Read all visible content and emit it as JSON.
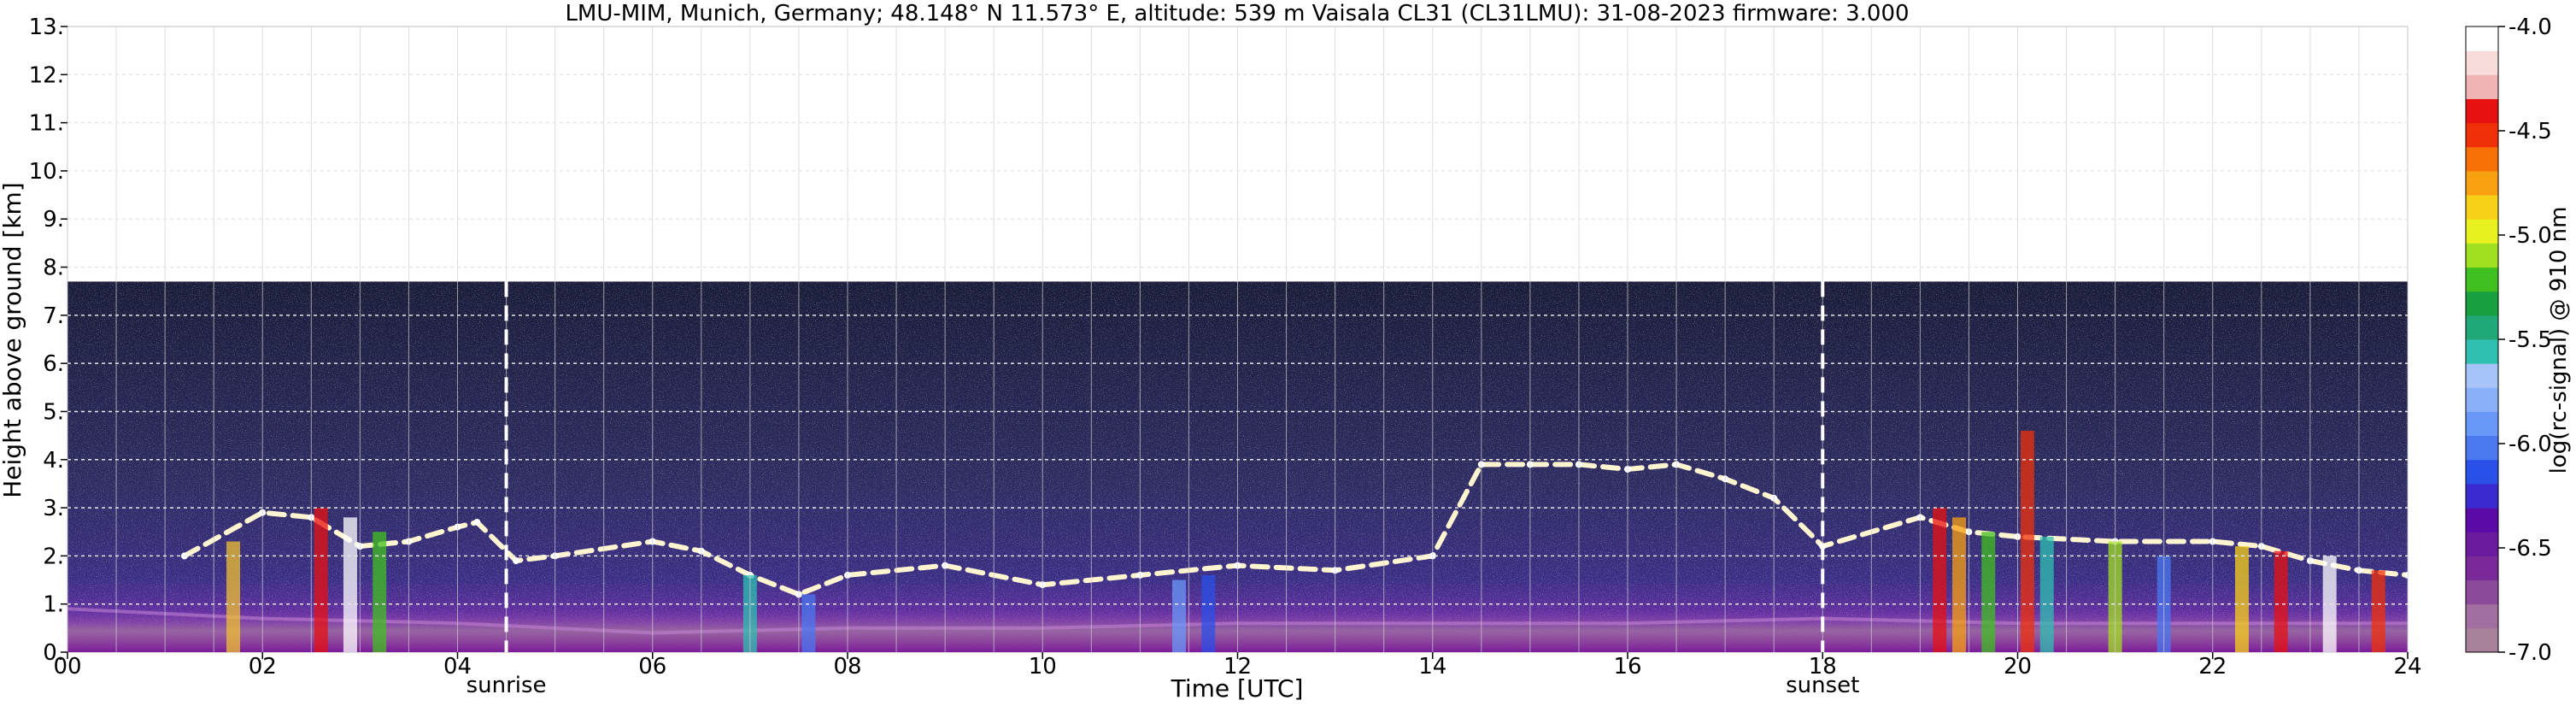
{
  "chart_data": {
    "type": "heatmap",
    "title": "LMU-MIM, Munich, Germany; 48.148° N 11.573° E, altitude: 539 m    Vaisala CL31 (CL31LMU): 31-08-2023    firmware: 3.000",
    "xlabel": "Time [UTC]",
    "ylabel": "Height above ground [km]",
    "xlim": [
      0,
      24
    ],
    "ylim": [
      0,
      13
    ],
    "x_ticks": [
      "00",
      "02",
      "04",
      "06",
      "08",
      "10",
      "12",
      "14",
      "16",
      "18",
      "20",
      "22",
      "24"
    ],
    "y_ticks": [
      "0.",
      "1.",
      "2.",
      "3.",
      "4.",
      "5.",
      "6.",
      "7.",
      "8.",
      "9.",
      "10.",
      "11.",
      "12.",
      "13."
    ],
    "grid": true,
    "data_top_km": 7.7,
    "sunrise": {
      "hour": 4.5,
      "label": "sunrise"
    },
    "sunset": {
      "hour": 18.0,
      "label": "sunset"
    },
    "colorbar": {
      "label": "log(rc-signal) @ 910 nm",
      "range": [
        -7.0,
        -4.0
      ],
      "ticks": [
        "-4.0",
        "-4.5",
        "-5.0",
        "-5.5",
        "-6.0",
        "-6.5",
        "-7.0"
      ],
      "colors": [
        "#a8829a",
        "#a270a0",
        "#8c4a9a",
        "#7a2a98",
        "#6a1a9c",
        "#5a0aa6",
        "#3a2ad0",
        "#2a50e8",
        "#4a78f0",
        "#6a98f8",
        "#8ab0f8",
        "#a6c4f8",
        "#2ec0b0",
        "#20a878",
        "#18a040",
        "#40c020",
        "#a0e020",
        "#e8f020",
        "#f8d018",
        "#f8a010",
        "#f87008",
        "#f03008",
        "#e81010",
        "#f0b4b4",
        "#f8dcdc",
        "#ffffff"
      ]
    },
    "layers": [
      {
        "name": "cloud_layer",
        "points": [
          [
            1.2,
            2.0
          ],
          [
            2.0,
            2.9
          ],
          [
            2.5,
            2.8
          ],
          [
            3.0,
            2.2
          ],
          [
            3.5,
            2.3
          ],
          [
            4.0,
            2.6
          ],
          [
            4.2,
            2.7
          ],
          [
            4.6,
            1.9
          ],
          [
            5.0,
            2.0
          ],
          [
            6.0,
            2.3
          ],
          [
            6.5,
            2.1
          ],
          [
            7.0,
            1.6
          ],
          [
            7.5,
            1.2
          ],
          [
            8.0,
            1.6
          ],
          [
            9.0,
            1.8
          ],
          [
            10.0,
            1.4
          ],
          [
            11.0,
            1.6
          ],
          [
            12.0,
            1.8
          ],
          [
            13.0,
            1.7
          ],
          [
            14.0,
            2.0
          ],
          [
            14.5,
            3.9
          ],
          [
            15.0,
            3.9
          ],
          [
            15.5,
            3.9
          ],
          [
            16.0,
            3.8
          ],
          [
            16.5,
            3.9
          ],
          [
            17.0,
            3.6
          ],
          [
            17.5,
            3.2
          ],
          [
            18.0,
            2.2
          ],
          [
            19.0,
            2.8
          ],
          [
            19.5,
            2.5
          ],
          [
            20.0,
            2.4
          ],
          [
            21.0,
            2.3
          ],
          [
            22.0,
            2.3
          ],
          [
            22.5,
            2.2
          ],
          [
            23.0,
            1.9
          ],
          [
            23.5,
            1.7
          ],
          [
            24.0,
            1.6
          ]
        ]
      },
      {
        "name": "aerosol_boundary_layer",
        "points": [
          [
            0,
            0.9
          ],
          [
            2,
            0.7
          ],
          [
            4,
            0.6
          ],
          [
            6,
            0.4
          ],
          [
            8,
            0.5
          ],
          [
            10,
            0.5
          ],
          [
            12,
            0.6
          ],
          [
            14,
            0.6
          ],
          [
            16,
            0.6
          ],
          [
            18,
            0.7
          ],
          [
            20,
            0.6
          ],
          [
            22,
            0.6
          ],
          [
            24,
            0.6
          ]
        ]
      }
    ]
  }
}
